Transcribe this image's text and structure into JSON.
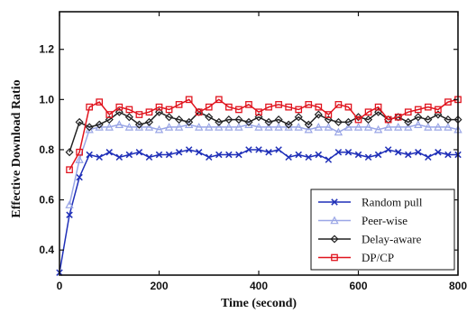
{
  "chart_data": {
    "type": "line",
    "title": "",
    "xlabel": "Time (second)",
    "ylabel": "Effective Download Ratio",
    "xlim": [
      0,
      800
    ],
    "ylim": [
      0.3,
      1.35
    ],
    "xticks": [
      0,
      200,
      400,
      600,
      800
    ],
    "yticks": [
      0.4,
      0.6,
      0.8,
      1.0,
      1.2
    ],
    "xtick_labels": [
      "0",
      "200",
      "400",
      "600",
      "800"
    ],
    "ytick_labels": [
      "0.4",
      "0.6",
      "0.8",
      "1.0",
      "1.2"
    ],
    "grid": false,
    "legend_position": "bottom-right",
    "series": [
      {
        "name": "Random pull",
        "color": "#1f2fb8",
        "marker": "x",
        "x": [
          0,
          20,
          40,
          60,
          80,
          100,
          120,
          140,
          160,
          180,
          200,
          220,
          240,
          260,
          280,
          300,
          320,
          340,
          360,
          380,
          400,
          420,
          440,
          460,
          480,
          500,
          520,
          540,
          560,
          580,
          600,
          620,
          640,
          660,
          680,
          700,
          720,
          740,
          760,
          780,
          800
        ],
        "y": [
          0.31,
          0.54,
          0.69,
          0.78,
          0.77,
          0.79,
          0.77,
          0.78,
          0.79,
          0.77,
          0.78,
          0.78,
          0.79,
          0.8,
          0.79,
          0.77,
          0.78,
          0.78,
          0.78,
          0.8,
          0.8,
          0.79,
          0.8,
          0.77,
          0.78,
          0.77,
          0.78,
          0.76,
          0.79,
          0.79,
          0.78,
          0.77,
          0.78,
          0.8,
          0.79,
          0.78,
          0.79,
          0.77,
          0.79,
          0.78,
          0.78
        ]
      },
      {
        "name": "Peer-wise",
        "color": "#9aa6e6",
        "marker": "triangle",
        "x": [
          20,
          40,
          60,
          80,
          100,
          120,
          140,
          160,
          180,
          200,
          220,
          240,
          260,
          280,
          300,
          320,
          340,
          360,
          380,
          400,
          420,
          440,
          460,
          480,
          500,
          520,
          540,
          560,
          580,
          600,
          620,
          640,
          660,
          680,
          700,
          720,
          740,
          760,
          780,
          800
        ],
        "y": [
          0.58,
          0.76,
          0.88,
          0.89,
          0.89,
          0.9,
          0.89,
          0.89,
          0.89,
          0.88,
          0.89,
          0.89,
          0.9,
          0.89,
          0.89,
          0.89,
          0.89,
          0.89,
          0.9,
          0.89,
          0.89,
          0.89,
          0.89,
          0.89,
          0.88,
          0.89,
          0.89,
          0.87,
          0.89,
          0.89,
          0.89,
          0.88,
          0.89,
          0.89,
          0.89,
          0.9,
          0.89,
          0.89,
          0.89,
          0.88
        ]
      },
      {
        "name": "Delay-aware",
        "color": "#222222",
        "marker": "diamond",
        "x": [
          20,
          40,
          60,
          80,
          100,
          120,
          140,
          160,
          180,
          200,
          220,
          240,
          260,
          280,
          300,
          320,
          340,
          360,
          380,
          400,
          420,
          440,
          460,
          480,
          500,
          520,
          540,
          560,
          580,
          600,
          620,
          640,
          660,
          680,
          700,
          720,
          740,
          760,
          780,
          800
        ],
        "y": [
          0.79,
          0.91,
          0.89,
          0.9,
          0.92,
          0.95,
          0.93,
          0.9,
          0.91,
          0.95,
          0.93,
          0.92,
          0.91,
          0.95,
          0.93,
          0.91,
          0.92,
          0.92,
          0.91,
          0.93,
          0.91,
          0.92,
          0.9,
          0.93,
          0.9,
          0.94,
          0.92,
          0.91,
          0.91,
          0.93,
          0.92,
          0.95,
          0.92,
          0.93,
          0.91,
          0.93,
          0.92,
          0.94,
          0.92,
          0.92
        ]
      },
      {
        "name": "DP/CP",
        "color": "#e0141e",
        "marker": "square",
        "x": [
          20,
          40,
          60,
          80,
          100,
          120,
          140,
          160,
          180,
          200,
          220,
          240,
          260,
          280,
          300,
          320,
          340,
          360,
          380,
          400,
          420,
          440,
          460,
          480,
          500,
          520,
          540,
          560,
          580,
          600,
          620,
          640,
          660,
          680,
          700,
          720,
          740,
          760,
          780,
          800
        ],
        "y": [
          0.72,
          0.79,
          0.97,
          0.99,
          0.94,
          0.97,
          0.96,
          0.94,
          0.95,
          0.97,
          0.96,
          0.98,
          1.0,
          0.95,
          0.97,
          1.0,
          0.97,
          0.96,
          0.98,
          0.95,
          0.97,
          0.98,
          0.97,
          0.96,
          0.98,
          0.97,
          0.94,
          0.98,
          0.97,
          0.92,
          0.95,
          0.97,
          0.92,
          0.93,
          0.95,
          0.96,
          0.97,
          0.96,
          0.99,
          1.0
        ]
      }
    ]
  }
}
